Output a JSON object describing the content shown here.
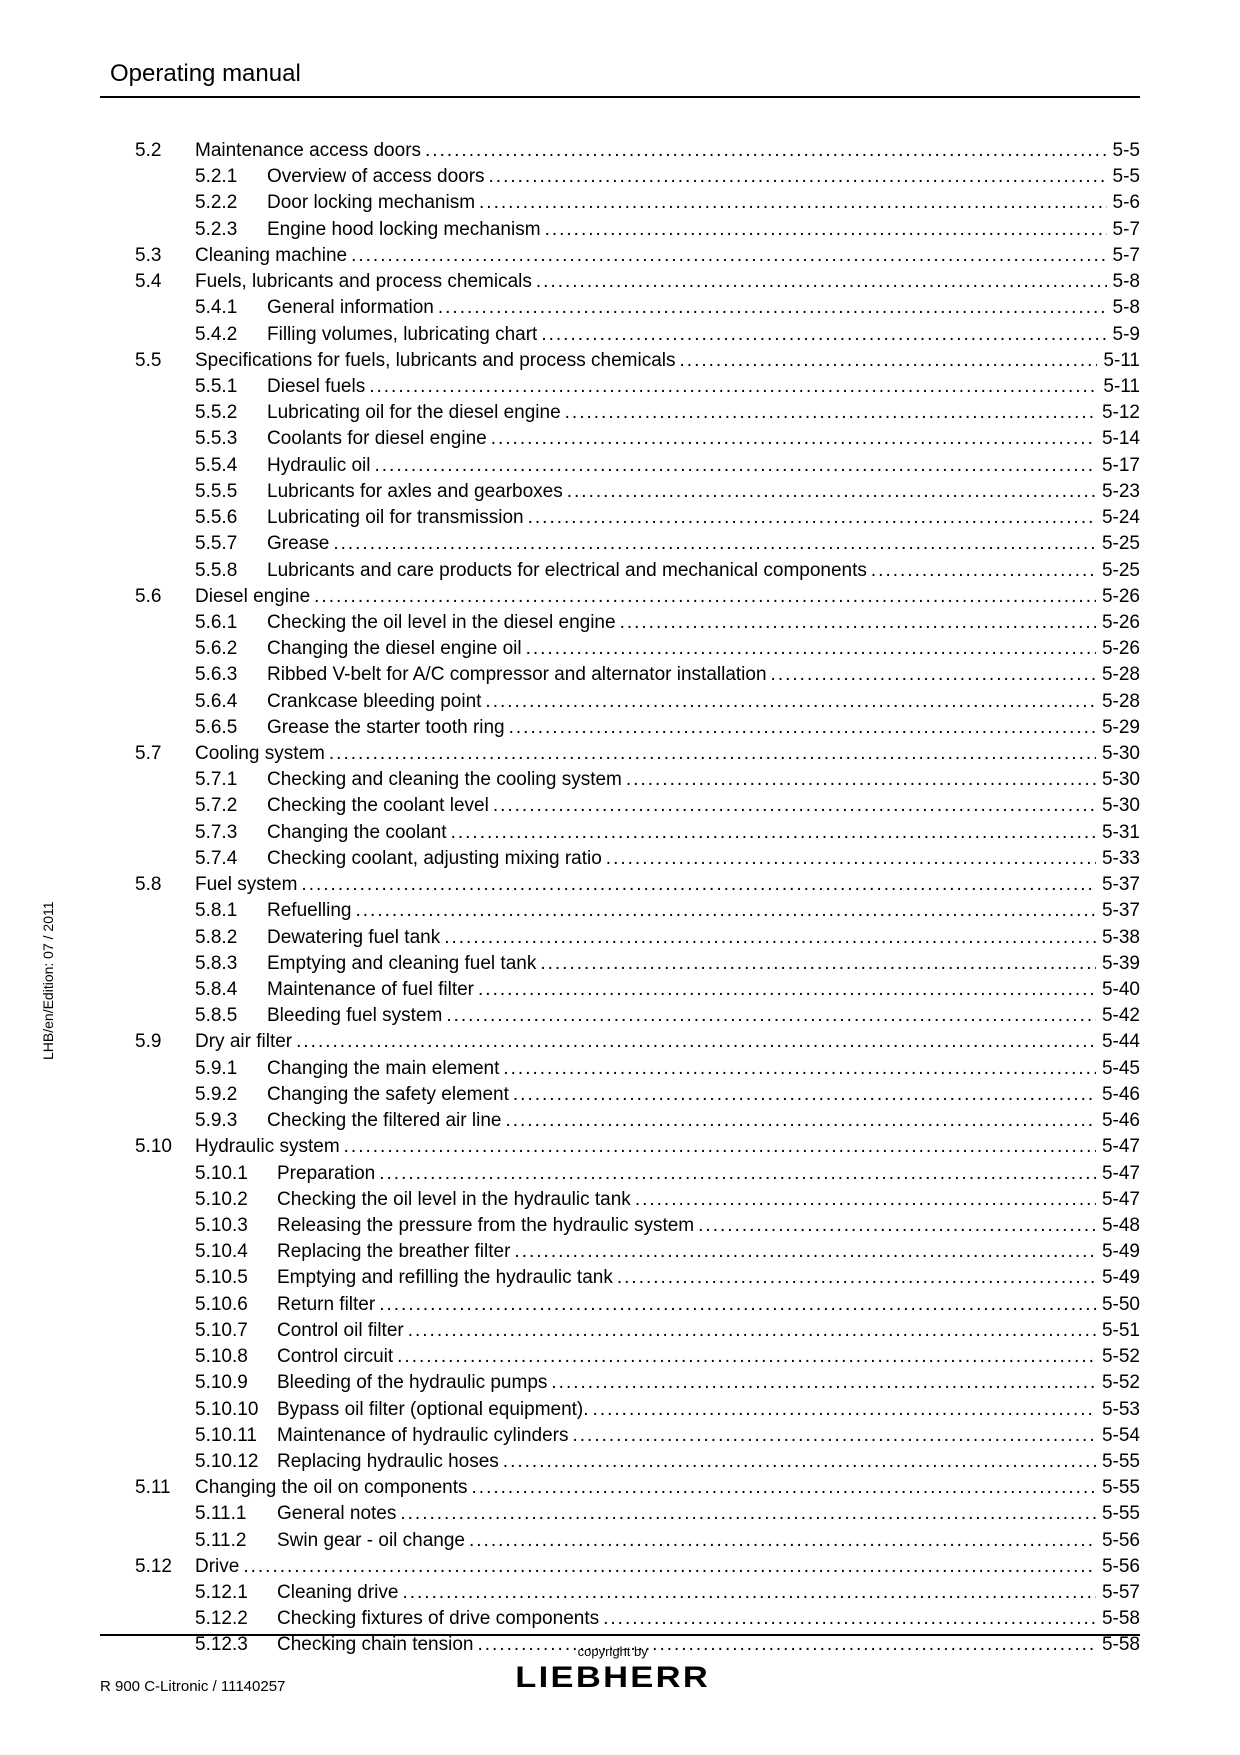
{
  "header": {
    "title": "Operating manual"
  },
  "side_label": "LHB/en/Edition: 07 / 2011",
  "footer": {
    "left": "R 900 C-Litronic / 11140257",
    "copyright": "copyright by",
    "brand": "LIEBHERR"
  },
  "toc": [
    {
      "num": "5.2",
      "title": "Maintenance access doors",
      "page": "5-5",
      "subs": [
        {
          "num": "5.2.1",
          "title": "Overview of access doors",
          "page": "5-5"
        },
        {
          "num": "5.2.2",
          "title": "Door locking mechanism",
          "page": "5-6"
        },
        {
          "num": "5.2.3",
          "title": "Engine hood locking mechanism",
          "page": "5-7"
        }
      ]
    },
    {
      "num": "5.3",
      "title": "Cleaning machine",
      "page": "5-7",
      "subs": []
    },
    {
      "num": "5.4",
      "title": "Fuels, lubricants and process chemicals",
      "page": "5-8",
      "subs": [
        {
          "num": "5.4.1",
          "title": "General information",
          "page": "5-8"
        },
        {
          "num": "5.4.2",
          "title": "Filling volumes, lubricating chart",
          "page": "5-9"
        }
      ]
    },
    {
      "num": "5.5",
      "title": "Specifications for fuels, lubricants and process chemicals",
      "page": "5-11",
      "subs": [
        {
          "num": "5.5.1",
          "title": "Diesel fuels",
          "page": "5-11"
        },
        {
          "num": "5.5.2",
          "title": "Lubricating oil for the diesel engine",
          "page": "5-12"
        },
        {
          "num": "5.5.3",
          "title": "Coolants for diesel engine",
          "page": "5-14"
        },
        {
          "num": "5.5.4",
          "title": "Hydraulic oil",
          "page": "5-17"
        },
        {
          "num": "5.5.5",
          "title": "Lubricants for axles and gearboxes",
          "page": "5-23"
        },
        {
          "num": "5.5.6",
          "title": "Lubricating oil for transmission",
          "page": "5-24"
        },
        {
          "num": "5.5.7",
          "title": "Grease",
          "page": "5-25"
        },
        {
          "num": "5.5.8",
          "title": "Lubricants and care products for electrical and mechanical components",
          "page": "5-25"
        }
      ]
    },
    {
      "num": "5.6",
      "title": "Diesel engine",
      "page": "5-26",
      "subs": [
        {
          "num": "5.6.1",
          "title": "Checking the oil level in the diesel engine",
          "page": "5-26"
        },
        {
          "num": "5.6.2",
          "title": "Changing the diesel engine oil",
          "page": "5-26"
        },
        {
          "num": "5.6.3",
          "title": "Ribbed V-belt for A/C compressor and alternator installation",
          "page": "5-28"
        },
        {
          "num": "5.6.4",
          "title": "Crankcase bleeding point",
          "page": "5-28"
        },
        {
          "num": "5.6.5",
          "title": "Grease the starter tooth ring",
          "page": "5-29"
        }
      ]
    },
    {
      "num": "5.7",
      "title": "Cooling system",
      "page": "5-30",
      "subs": [
        {
          "num": "5.7.1",
          "title": "Checking and cleaning the cooling system",
          "page": "5-30"
        },
        {
          "num": "5.7.2",
          "title": "Checking the coolant level",
          "page": "5-30"
        },
        {
          "num": "5.7.3",
          "title": "Changing the coolant",
          "page": "5-31"
        },
        {
          "num": "5.7.4",
          "title": "Checking coolant, adjusting mixing ratio",
          "page": "5-33"
        }
      ]
    },
    {
      "num": "5.8",
      "title": "Fuel system",
      "page": "5-37",
      "subs": [
        {
          "num": "5.8.1",
          "title": "Refuelling",
          "page": "5-37"
        },
        {
          "num": "5.8.2",
          "title": "Dewatering fuel tank",
          "page": "5-38"
        },
        {
          "num": "5.8.3",
          "title": "Emptying and cleaning fuel tank",
          "page": "5-39"
        },
        {
          "num": "5.8.4",
          "title": "Maintenance of fuel filter",
          "page": "5-40"
        },
        {
          "num": "5.8.5",
          "title": "Bleeding fuel system",
          "page": "5-42"
        }
      ]
    },
    {
      "num": "5.9",
      "title": "Dry air filter",
      "page": "5-44",
      "subs": [
        {
          "num": "5.9.1",
          "title": "Changing the main element",
          "page": "5-45"
        },
        {
          "num": "5.9.2",
          "title": "Changing the safety element",
          "page": "5-46"
        },
        {
          "num": "5.9.3",
          "title": "Checking the filtered air line",
          "page": "5-46"
        }
      ]
    },
    {
      "num": "5.10",
      "title": "Hydraulic system",
      "page": "5-47",
      "wide": true,
      "subs": [
        {
          "num": "5.10.1",
          "title": "Preparation",
          "page": "5-47"
        },
        {
          "num": "5.10.2",
          "title": "Checking the oil level in the hydraulic tank",
          "page": "5-47"
        },
        {
          "num": "5.10.3",
          "title": "Releasing the pressure from the hydraulic system",
          "page": "5-48"
        },
        {
          "num": "5.10.4",
          "title": "Replacing the breather filter",
          "page": "5-49"
        },
        {
          "num": "5.10.5",
          "title": "Emptying and refilling the hydraulic tank",
          "page": "5-49"
        },
        {
          "num": "5.10.6",
          "title": "Return filter",
          "page": "5-50"
        },
        {
          "num": "5.10.7",
          "title": "Control oil filter",
          "page": "5-51"
        },
        {
          "num": "5.10.8",
          "title": "Control circuit",
          "page": "5-52"
        },
        {
          "num": "5.10.9",
          "title": "Bleeding of the hydraulic pumps",
          "page": "5-52"
        },
        {
          "num": "5.10.10",
          "title": "Bypass oil filter (optional equipment).",
          "page": "5-53"
        },
        {
          "num": "5.10.11",
          "title": "Maintenance of hydraulic cylinders",
          "page": "5-54"
        },
        {
          "num": "5.10.12",
          "title": "Replacing hydraulic hoses",
          "page": "5-55"
        }
      ]
    },
    {
      "num": "5.11",
      "title": "Changing the oil on components",
      "page": "5-55",
      "wide": true,
      "subs": [
        {
          "num": "5.11.1",
          "title": "General notes",
          "page": "5-55"
        },
        {
          "num": "5.11.2",
          "title": "Swin gear - oil change",
          "page": "5-56"
        }
      ]
    },
    {
      "num": "5.12",
      "title": "Drive",
      "page": "5-56",
      "wide": true,
      "subs": [
        {
          "num": "5.12.1",
          "title": "Cleaning drive",
          "page": "5-57"
        },
        {
          "num": "5.12.2",
          "title": "Checking fixtures of drive components",
          "page": "5-58"
        },
        {
          "num": "5.12.3",
          "title": "Checking chain tension",
          "page": "5-58"
        }
      ]
    }
  ]
}
